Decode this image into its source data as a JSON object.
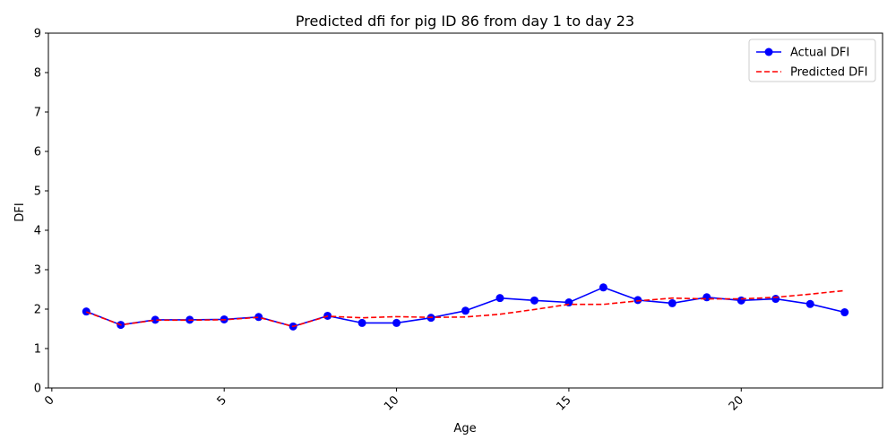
{
  "chart_data": {
    "type": "line",
    "title": "Predicted dfi for pig ID 86 from day 1 to day 23",
    "xlabel": "Age",
    "ylabel": "DFI",
    "xlim": [
      -0.1,
      24.1
    ],
    "ylim": [
      0,
      9
    ],
    "xticks": [
      0,
      5,
      10,
      15,
      20
    ],
    "yticks": [
      0,
      1,
      2,
      3,
      4,
      5,
      6,
      7,
      8,
      9
    ],
    "grid": false,
    "legend_position": "top-right",
    "x": [
      1,
      2,
      3,
      4,
      5,
      6,
      7,
      8,
      9,
      10,
      11,
      12,
      13,
      14,
      15,
      16,
      17,
      18,
      19,
      20,
      21,
      22,
      23
    ],
    "series": [
      {
        "name": "Actual DFI",
        "color": "#0000ff",
        "style": "solid",
        "marker": "circle",
        "values": [
          1.94,
          1.6,
          1.73,
          1.73,
          1.74,
          1.8,
          1.56,
          1.83,
          1.65,
          1.65,
          1.78,
          1.96,
          2.28,
          2.22,
          2.17,
          2.55,
          2.23,
          2.15,
          2.3,
          2.22,
          2.26,
          2.13,
          1.92
        ]
      },
      {
        "name": "Predicted DFI",
        "color": "#ff0000",
        "style": "dashed",
        "marker": "none",
        "values": [
          1.93,
          1.6,
          1.72,
          1.72,
          1.73,
          1.79,
          1.56,
          1.82,
          1.78,
          1.81,
          1.79,
          1.8,
          1.87,
          1.99,
          2.12,
          2.12,
          2.21,
          2.28,
          2.26,
          2.26,
          2.3,
          2.38,
          2.47
        ]
      }
    ]
  }
}
